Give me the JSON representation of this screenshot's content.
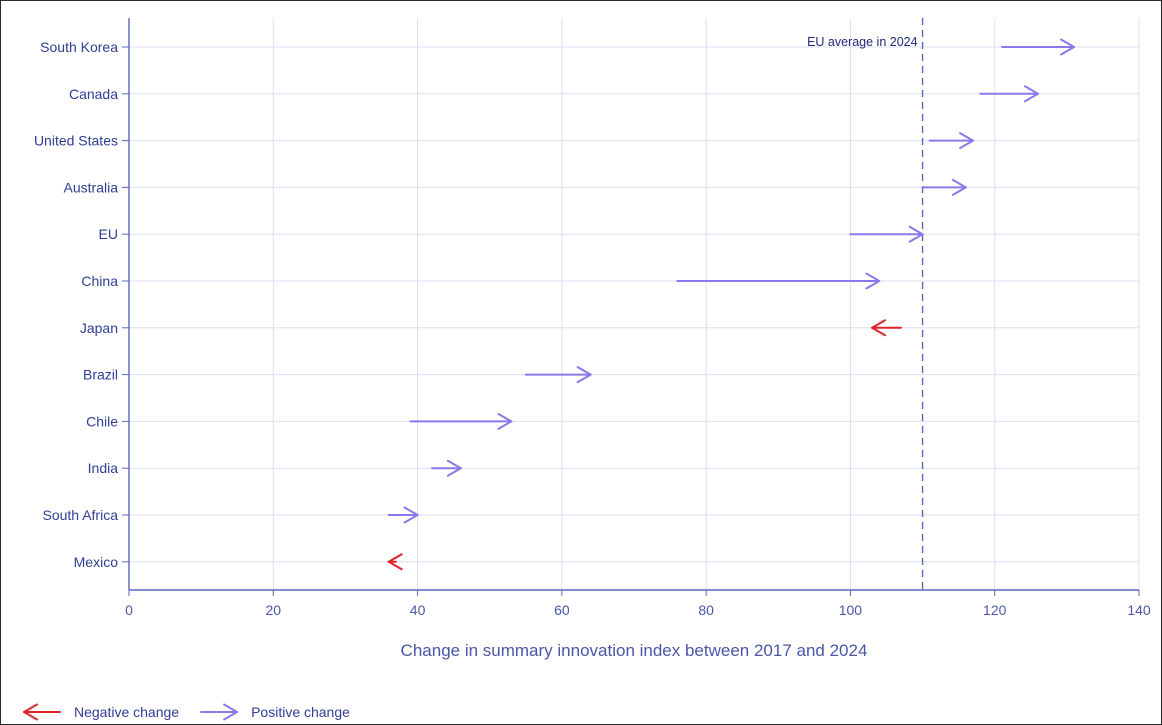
{
  "chart_data": {
    "type": "arrow",
    "categories": [
      "South Korea",
      "Canada",
      "United States",
      "Australia",
      "EU",
      "China",
      "Japan",
      "Brazil",
      "Chile",
      "India",
      "South Africa",
      "Mexico"
    ],
    "series": [
      {
        "name": "2017",
        "values": [
          121,
          118,
          111,
          110,
          100,
          76,
          107,
          55,
          39,
          42,
          36,
          37
        ]
      },
      {
        "name": "2024",
        "values": [
          131,
          126,
          117,
          116,
          110,
          104,
          103,
          64,
          53,
          46,
          40,
          36
        ]
      }
    ],
    "xlabel": "Change in summary innovation index between 2017 and 2024",
    "ylabel": "",
    "xlim": [
      0,
      140
    ],
    "xticks": [
      0,
      20,
      40,
      60,
      80,
      100,
      120,
      140
    ],
    "grid": true,
    "reference_line": {
      "value": 110,
      "label": "EU average in 2024",
      "style": "dashed"
    },
    "legend": {
      "placement": "bottom-left",
      "items": [
        {
          "label": "Negative change",
          "color": "#e0232b"
        },
        {
          "label": "Positive change",
          "color": "#8b78ea"
        }
      ]
    },
    "colors": {
      "positive": "#8b78ea",
      "negative": "#e0232b",
      "grid": "#dcdff3",
      "axis": "#5a67b8"
    }
  }
}
